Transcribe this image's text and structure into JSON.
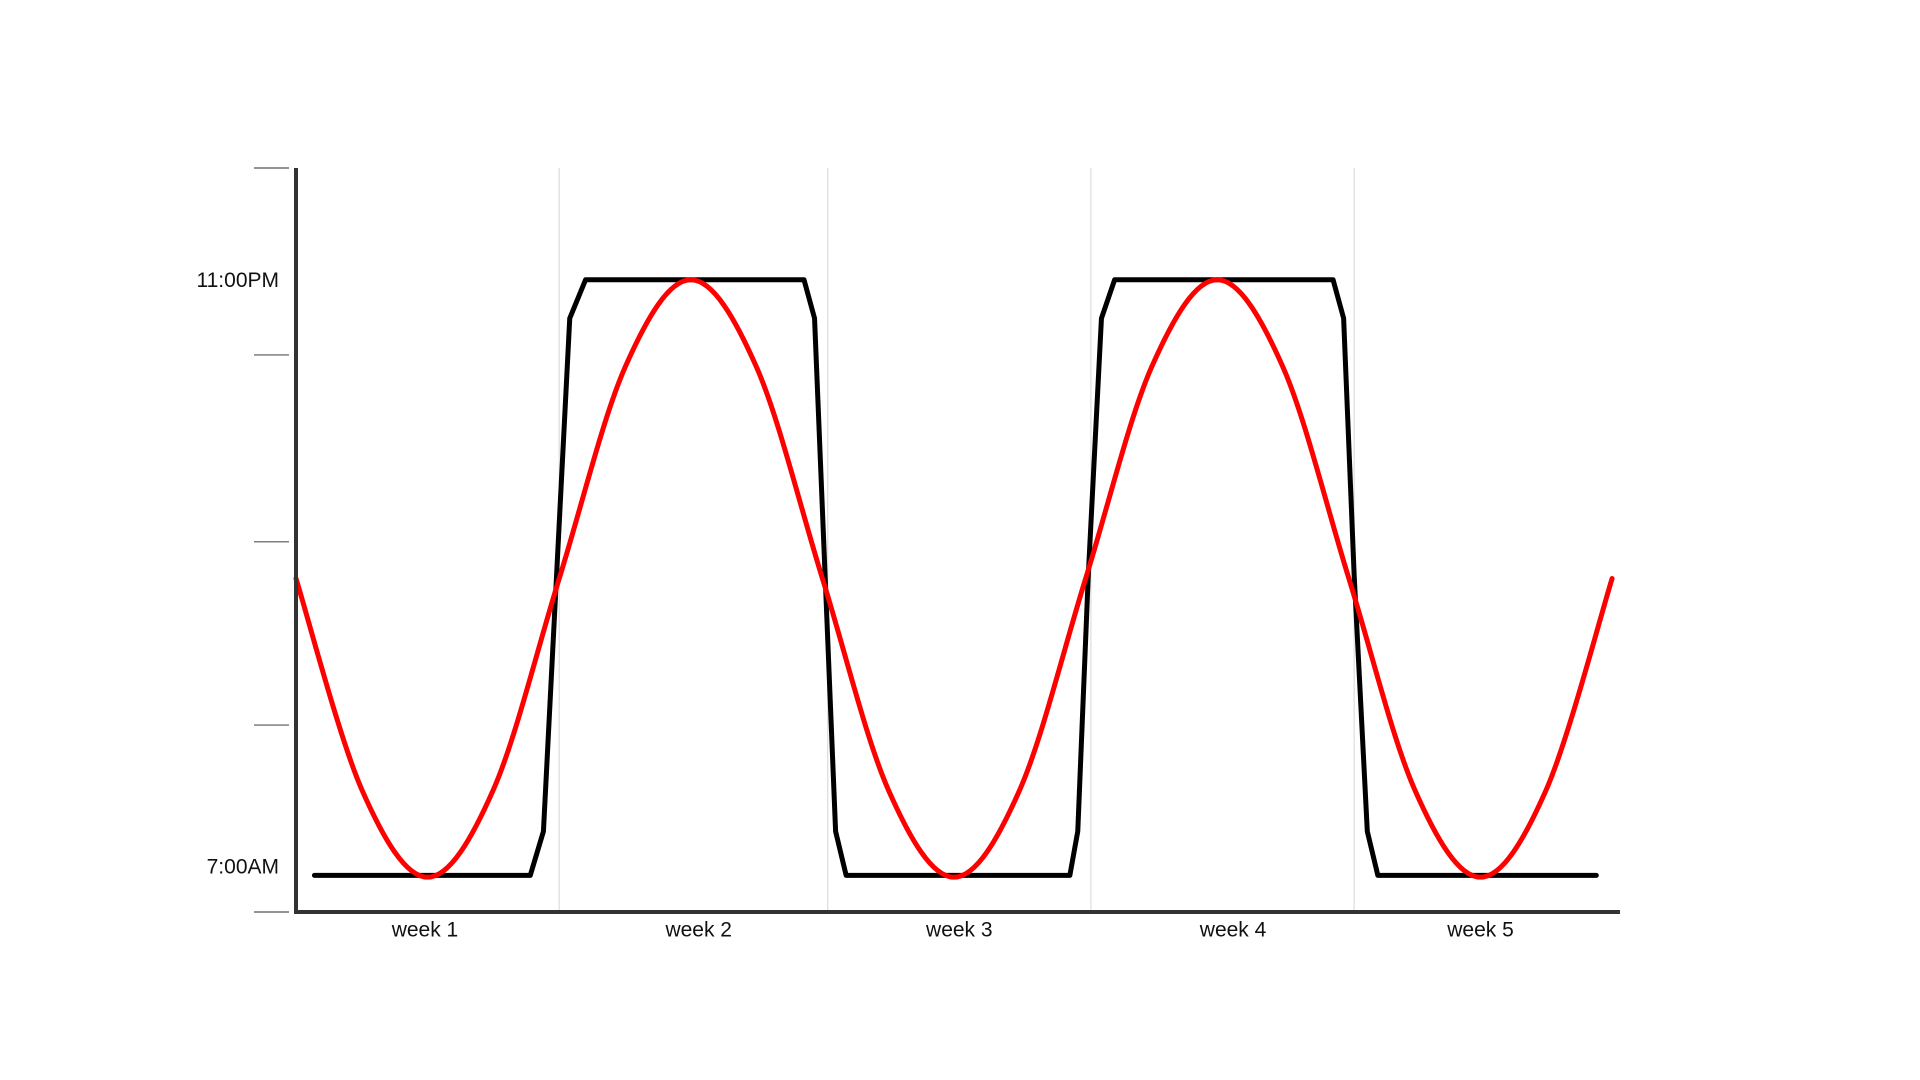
{
  "chart_data": {
    "type": "line",
    "xlim": [
      0,
      5.03
    ],
    "ylim": [
      5.8,
      26.1
    ],
    "yticks": [
      5.8,
      10.9,
      15.9,
      21.0,
      26.1
    ],
    "ylabels": [
      {
        "value": 7,
        "label": "7:00AM"
      },
      {
        "value": 23,
        "label": "11:00PM"
      }
    ],
    "xticks": [
      {
        "value": 0.49,
        "label": "week 1"
      },
      {
        "value": 1.53,
        "label": "week 2"
      },
      {
        "value": 2.52,
        "label": "week 3"
      },
      {
        "value": 3.56,
        "label": "week 4"
      },
      {
        "value": 4.5,
        "label": "week 5"
      }
    ],
    "xgrid": [
      1.0,
      2.02,
      3.02,
      4.02
    ],
    "grid": true,
    "series": [
      {
        "color": "#000000",
        "smooth": false,
        "x": [
          0.07,
          0.89,
          0.94,
          0.99,
          1.04,
          1.1,
          1.93,
          1.97,
          2.01,
          2.05,
          2.09,
          2.94,
          2.97,
          3.01,
          3.06,
          3.11,
          3.94,
          3.98,
          4.02,
          4.07,
          4.11,
          4.94
        ],
        "values": [
          6.8,
          6.8,
          8,
          15,
          22,
          23.05,
          23.05,
          22,
          15,
          8,
          6.8,
          6.8,
          8,
          15,
          22,
          23.05,
          23.05,
          22,
          15,
          8,
          6.8,
          6.8
        ]
      },
      {
        "color": "#ff0000",
        "smooth": true,
        "x": [
          0,
          0.25,
          0.5,
          0.75,
          1,
          1.25,
          1.5,
          1.75,
          2,
          2.25,
          2.5,
          2.75,
          3,
          3.25,
          3.5,
          3.75,
          4,
          4.25,
          4.5,
          4.75,
          5
        ],
        "values": [
          14.9,
          9.14,
          6.75,
          9.14,
          14.9,
          20.66,
          23.05,
          20.66,
          14.9,
          9.14,
          6.75,
          9.14,
          14.9,
          20.66,
          23.05,
          20.66,
          14.9,
          9.14,
          6.75,
          9.14,
          14.9
        ]
      }
    ]
  }
}
